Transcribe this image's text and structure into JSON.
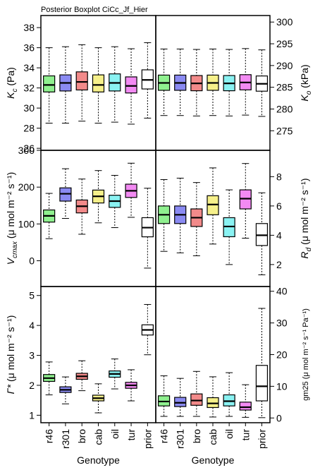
{
  "title": "Posterior Boxplot CiCc_Jf_Hier",
  "colors": {
    "r46": "#8ff08f",
    "r301": "#8a8af2",
    "bro": "#f28a8a",
    "cab": "#f6f08a",
    "oil": "#8af2f2",
    "tur": "#f28af2",
    "prior": "#ffffff"
  },
  "chart_data": [
    {
      "type": "boxplot",
      "panel": "Kc",
      "side": "left",
      "ylabel_main": "K",
      "ylabel_sub": "c",
      "ylabel_unit": " (Pa)",
      "ylim": [
        25.8,
        39.2
      ],
      "ticks": [
        26,
        28,
        30,
        32,
        34,
        36,
        38
      ],
      "categories": [
        "r46",
        "r301",
        "bro",
        "cab",
        "oil",
        "tur",
        "prior"
      ],
      "boxes": [
        {
          "low": 28.5,
          "q1": 31.6,
          "med": 32.3,
          "q3": 33.2,
          "high": 36.0
        },
        {
          "low": 28.5,
          "q1": 31.7,
          "med": 32.5,
          "q3": 33.3,
          "high": 36.1
        },
        {
          "low": 28.7,
          "q1": 31.8,
          "med": 32.6,
          "q3": 33.6,
          "high": 36.3
        },
        {
          "low": 28.5,
          "q1": 31.6,
          "med": 32.3,
          "q3": 33.3,
          "high": 36.0
        },
        {
          "low": 28.6,
          "q1": 31.7,
          "med": 32.5,
          "q3": 33.4,
          "high": 36.1
        },
        {
          "low": 28.4,
          "q1": 31.5,
          "med": 32.2,
          "q3": 33.1,
          "high": 35.9
        },
        {
          "low": 29.0,
          "q1": 31.9,
          "med": 32.8,
          "q3": 33.8,
          "high": 36.5
        }
      ]
    },
    {
      "type": "boxplot",
      "panel": "Ko",
      "side": "right",
      "ylabel_main": "K",
      "ylabel_sub": "o",
      "ylabel_unit": " (kPa)",
      "ylim": [
        270.5,
        301.5
      ],
      "ticks": [
        275,
        280,
        285,
        290,
        295,
        300
      ],
      "categories": [
        "r46",
        "r301",
        "bro",
        "cab",
        "oil",
        "tur",
        "prior"
      ],
      "boxes": [
        {
          "low": 278.5,
          "q1": 284.3,
          "med": 286.0,
          "q3": 287.8,
          "high": 293.8
        },
        {
          "low": 278.5,
          "q1": 284.3,
          "med": 286.0,
          "q3": 287.8,
          "high": 293.8
        },
        {
          "low": 278.4,
          "q1": 284.2,
          "med": 285.9,
          "q3": 287.7,
          "high": 293.7
        },
        {
          "low": 278.5,
          "q1": 284.3,
          "med": 286.0,
          "q3": 287.8,
          "high": 293.8
        },
        {
          "low": 278.4,
          "q1": 284.2,
          "med": 285.9,
          "q3": 287.7,
          "high": 293.7
        },
        {
          "low": 278.6,
          "q1": 284.4,
          "med": 286.1,
          "q3": 287.9,
          "high": 293.9
        },
        {
          "low": 278.3,
          "q1": 284.1,
          "med": 285.8,
          "q3": 287.6,
          "high": 293.6
        }
      ]
    },
    {
      "type": "boxplot",
      "panel": "Vcmax",
      "side": "left",
      "ylabel_main": "V",
      "ylabel_sub": "cmax",
      "ylabel_unit": " (μ mol m⁻² s⁻¹)",
      "ylim": [
        -70,
        300
      ],
      "ticks": [
        0,
        100,
        200,
        300
      ],
      "categories": [
        "r46",
        "r301",
        "bro",
        "cab",
        "oil",
        "tur",
        "prior"
      ],
      "boxes": [
        {
          "low": 60,
          "q1": 105,
          "med": 122,
          "q3": 138,
          "high": 183
        },
        {
          "low": 115,
          "q1": 162,
          "med": 182,
          "q3": 198,
          "high": 250
        },
        {
          "low": 72,
          "q1": 130,
          "med": 148,
          "q3": 165,
          "high": 222
        },
        {
          "low": 103,
          "q1": 157,
          "med": 175,
          "q3": 192,
          "high": 245
        },
        {
          "low": 90,
          "q1": 145,
          "med": 162,
          "q3": 178,
          "high": 232
        },
        {
          "low": 118,
          "q1": 172,
          "med": 190,
          "q3": 208,
          "high": 265
        },
        {
          "low": -20,
          "q1": 65,
          "med": 90,
          "q3": 117,
          "high": 197
        }
      ]
    },
    {
      "type": "boxplot",
      "panel": "Rd",
      "side": "right",
      "ylabel_main": "R",
      "ylabel_sub": "d",
      "ylabel_unit": " (μ mol m⁻² s⁻¹)",
      "ylim": [
        0.5,
        9.8
      ],
      "ticks": [
        2,
        4,
        6,
        8
      ],
      "categories": [
        "r46",
        "r301",
        "bro",
        "cab",
        "oil",
        "tur",
        "prior"
      ],
      "boxes": [
        {
          "low": 2.9,
          "q1": 4.8,
          "med": 5.4,
          "q3": 6.0,
          "high": 7.8
        },
        {
          "low": 2.8,
          "q1": 4.8,
          "med": 5.4,
          "q3": 6.0,
          "high": 7.9
        },
        {
          "low": 2.6,
          "q1": 4.6,
          "med": 5.2,
          "q3": 5.8,
          "high": 7.6
        },
        {
          "low": 3.4,
          "q1": 5.4,
          "med": 6.1,
          "q3": 6.7,
          "high": 8.6
        },
        {
          "low": 2.0,
          "q1": 3.9,
          "med": 4.6,
          "q3": 5.2,
          "high": 7.1
        },
        {
          "low": 3.8,
          "q1": 5.8,
          "med": 6.5,
          "q3": 7.1,
          "high": 8.9
        },
        {
          "low": 1.3,
          "q1": 3.3,
          "med": 4.0,
          "q3": 4.8,
          "high": 6.9
        }
      ]
    },
    {
      "type": "boxplot",
      "panel": "Gamma",
      "side": "left",
      "ylabel_main": "Γ*",
      "ylabel_sub": "",
      "ylabel_unit": " (μ mol m⁻² s⁻¹)",
      "ylim": [
        0.75,
        5.3
      ],
      "ticks": [
        1,
        2,
        3,
        4,
        5
      ],
      "categories": [
        "r46",
        "r301",
        "bro",
        "cab",
        "oil",
        "tur",
        "prior"
      ],
      "boxes": [
        {
          "low": 1.68,
          "q1": 2.13,
          "med": 2.24,
          "q3": 2.36,
          "high": 2.78
        },
        {
          "low": 1.38,
          "q1": 1.76,
          "med": 1.85,
          "q3": 1.95,
          "high": 2.28
        },
        {
          "low": 1.82,
          "q1": 2.2,
          "med": 2.3,
          "q3": 2.4,
          "high": 2.82
        },
        {
          "low": 1.08,
          "q1": 1.48,
          "med": 1.57,
          "q3": 1.67,
          "high": 2.05
        },
        {
          "low": 1.88,
          "q1": 2.27,
          "med": 2.38,
          "q3": 2.48,
          "high": 2.88
        },
        {
          "low": 1.48,
          "q1": 1.9,
          "med": 2.0,
          "q3": 2.1,
          "high": 2.52
        },
        {
          "low": 3.02,
          "q1": 3.68,
          "med": 3.85,
          "q3": 4.02,
          "high": 4.7
        }
      ]
    },
    {
      "type": "boxplot",
      "panel": "gm25",
      "side": "right",
      "ylabel_main": "gm25",
      "ylabel_sub": "",
      "ylabel_unit": " (μ mol m⁻² s⁻¹ Pa⁻¹)",
      "ylim": [
        -1.5,
        41.5
      ],
      "ticks": [
        0,
        10,
        20,
        30,
        40
      ],
      "categories": [
        "r46",
        "r301",
        "bro",
        "cab",
        "oil",
        "tur",
        "prior"
      ],
      "boxes": [
        {
          "low": 0.5,
          "q1": 3.8,
          "med": 5.2,
          "q3": 7.0,
          "high": 13.3
        },
        {
          "low": 0.5,
          "q1": 3.6,
          "med": 4.8,
          "q3": 6.5,
          "high": 12.5
        },
        {
          "low": 0.5,
          "q1": 4.0,
          "med": 5.5,
          "q3": 7.6,
          "high": 14.7
        },
        {
          "low": 0.3,
          "q1": 3.3,
          "med": 4.6,
          "q3": 6.4,
          "high": 13.0
        },
        {
          "low": 0.5,
          "q1": 3.8,
          "med": 5.3,
          "q3": 7.3,
          "high": 14.3
        },
        {
          "low": 0.2,
          "q1": 2.5,
          "med": 3.4,
          "q3": 5.0,
          "high": 10.5
        },
        {
          "low": 0.1,
          "q1": 5.4,
          "med": 10.0,
          "q3": 16.6,
          "high": 34.6
        }
      ]
    }
  ],
  "xlabel": "Genotype"
}
